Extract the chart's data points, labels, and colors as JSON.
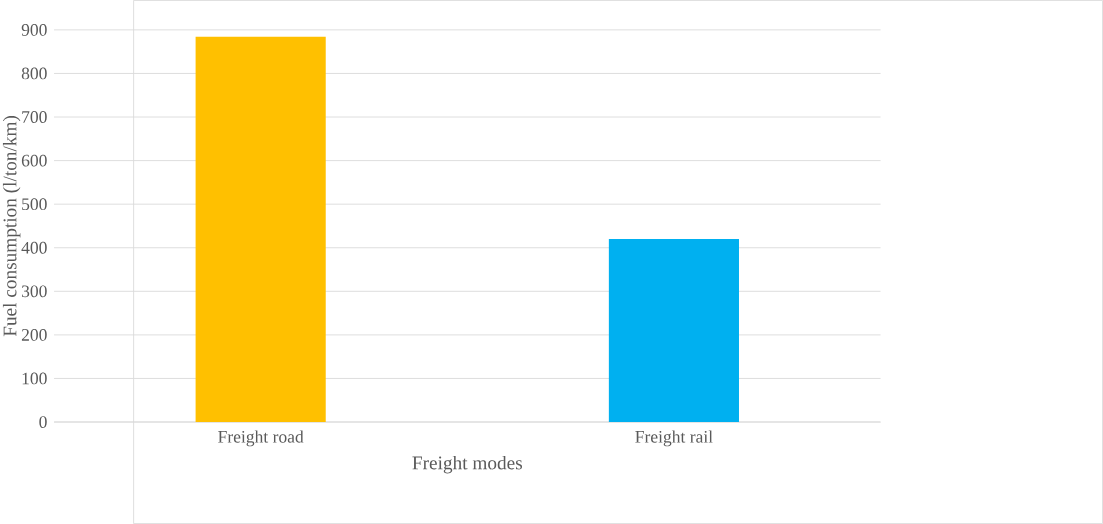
{
  "chart_data": {
    "type": "bar",
    "xlabel": "Freight modes",
    "ylabel": "Fuel consumption (l/ton/km)",
    "categories": [
      "Freight road",
      "Freight rail"
    ],
    "values": [
      884,
      420
    ],
    "colors": [
      "#ffc000",
      "#00b0f0"
    ],
    "ylim": [
      0,
      900
    ],
    "yticks": [
      0,
      100,
      200,
      300,
      400,
      500,
      600,
      700,
      800,
      900
    ],
    "grid": "y"
  }
}
